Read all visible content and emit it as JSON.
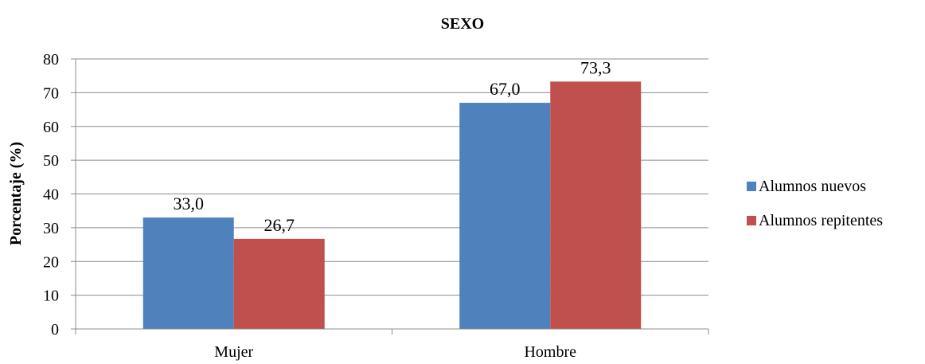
{
  "chart_data": {
    "type": "bar",
    "title": "SEXO",
    "xlabel": "",
    "ylabel": "Porcentaje (%)",
    "categories": [
      "Mujer",
      "Hombre"
    ],
    "series": [
      {
        "name": "Alumnos nuevos",
        "values": [
          33.0,
          67.0
        ],
        "labels": [
          "33,0",
          "67,0"
        ],
        "color": "#4F81BD"
      },
      {
        "name": "Alumnos repitentes",
        "values": [
          26.7,
          73.3
        ],
        "labels": [
          "26,7",
          "73,3"
        ],
        "color": "#C0504D"
      }
    ],
    "ylim": [
      0,
      80
    ],
    "yticks": [
      0,
      10,
      20,
      30,
      40,
      50,
      60,
      70,
      80
    ],
    "grid": true,
    "legend": "right"
  }
}
